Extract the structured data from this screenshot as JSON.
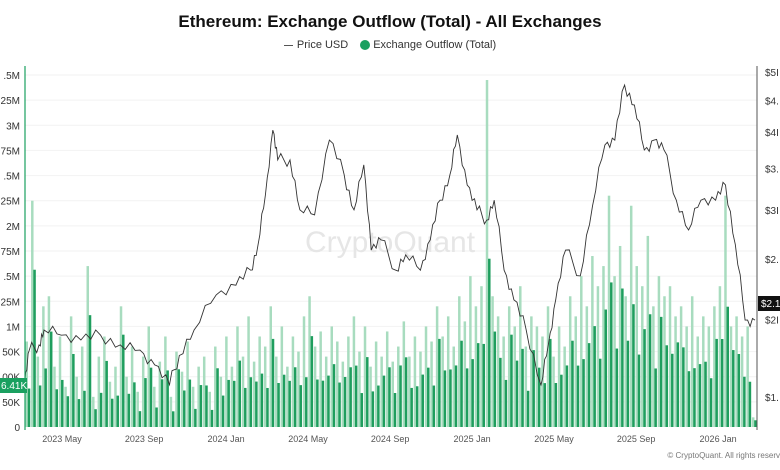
{
  "chart_data": {
    "type": "bar+line",
    "title": "Ethereum: Exchange Outflow (Total) - All Exchanges",
    "legend": [
      {
        "label": "Price USD",
        "color": "#333333",
        "marker": "line"
      },
      {
        "label": "Exchange Outflow (Total)",
        "color": "#1aa060",
        "marker": "dot"
      }
    ],
    "legend_placement": "top-center",
    "watermark": "CryptoQuant",
    "copyright": "© CryptoQuant. All rights reserv",
    "x_ticks": [
      "2023 May",
      "2023 Sep",
      "2024 Jan",
      "2024 May",
      "2024 Sep",
      "2025 Jan",
      "2025 May",
      "2025 Sep",
      "2026 Jan"
    ],
    "x_tick_years": [
      2023.333,
      2023.667,
      2024.0,
      2024.333,
      2024.667,
      2025.0,
      2025.333,
      2025.667,
      2026.0
    ],
    "x_range_years": [
      2023.18,
      2026.16
    ],
    "left_axis": {
      "label_visible": [
        ".5M",
        "25M",
        "3M",
        "75M",
        ".5M",
        "25M",
        "2M",
        "75M",
        ".5M",
        "25M",
        "1M",
        "50K",
        "00K",
        "50K",
        "0"
      ],
      "values": [
        3500000,
        3250000,
        3000000,
        2750000,
        2500000,
        2250000,
        2000000,
        1750000,
        1500000,
        1250000,
        1000000,
        750000,
        500000,
        250000,
        0
      ],
      "range": [
        0,
        3500000
      ],
      "current_label": "6.41K"
    },
    "right_axis": {
      "label_visible": [
        "$5I",
        "$4.",
        "$4I",
        "$3.",
        "$3I",
        "$2.",
        "$2I",
        "$1."
      ],
      "values": [
        5000,
        4500,
        4000,
        3500,
        3000,
        2500,
        2000,
        1500
      ],
      "scale": "log",
      "current_label": "$2.1"
    },
    "grid": true,
    "outflow_thousands": [
      850,
      2250,
      700,
      1200,
      1300,
      600,
      900,
      400,
      1100,
      500,
      800,
      1600,
      300,
      700,
      900,
      450,
      600,
      1200,
      500,
      800,
      350,
      700,
      1000,
      400,
      650,
      900,
      300,
      750,
      550,
      850,
      400,
      600,
      700,
      350,
      800,
      500,
      900,
      600,
      1000,
      700,
      1100,
      650,
      900,
      800,
      1200,
      700,
      1000,
      600,
      900,
      750,
      1100,
      1300,
      800,
      950,
      700,
      1000,
      850,
      650,
      900,
      1100,
      750,
      1000,
      600,
      850,
      700,
      950,
      650,
      800,
      1050,
      700,
      900,
      750,
      1000,
      850,
      1200,
      900,
      1100,
      800,
      1300,
      1050,
      1500,
      1200,
      1400,
      3450,
      1300,
      1100,
      900,
      1200,
      1000,
      1400,
      800,
      1100,
      1000,
      900,
      1200,
      700,
      1000,
      800,
      1300,
      1100,
      1500,
      1200,
      1700,
      1400,
      1600,
      2300,
      1500,
      1800,
      1300,
      2200,
      1600,
      1400,
      1900,
      1200,
      1500,
      1300,
      1400,
      1100,
      1200,
      1000,
      1300,
      900,
      1100,
      1000,
      1200,
      1400,
      2300,
      1000,
      1100,
      900,
      1000,
      96
    ],
    "price_points": [
      [
        2023.18,
        1570
      ],
      [
        2023.2,
        1785
      ],
      [
        2023.24,
        1820
      ],
      [
        2023.26,
        1923
      ],
      [
        2023.33,
        1886
      ],
      [
        2023.41,
        1853
      ],
      [
        2023.49,
        1886
      ],
      [
        2023.57,
        1820
      ],
      [
        2023.65,
        1785
      ],
      [
        2023.71,
        1690
      ],
      [
        2023.77,
        1570
      ],
      [
        2023.81,
        1750
      ],
      [
        2023.87,
        1923
      ],
      [
        2023.96,
        2190
      ],
      [
        2024.04,
        2270
      ],
      [
        2024.1,
        2400
      ],
      [
        2024.13,
        2640
      ],
      [
        2024.16,
        3170
      ],
      [
        2024.19,
        4030
      ],
      [
        2024.21,
        3610
      ],
      [
        2024.26,
        3610
      ],
      [
        2024.3,
        3000
      ],
      [
        2024.36,
        2945
      ],
      [
        2024.42,
        3885
      ],
      [
        2024.48,
        3415
      ],
      [
        2024.52,
        3000
      ],
      [
        2024.56,
        3545
      ],
      [
        2024.59,
        2585
      ],
      [
        2024.63,
        2685
      ],
      [
        2024.69,
        2400
      ],
      [
        2024.73,
        2540
      ],
      [
        2024.79,
        2400
      ],
      [
        2024.83,
        2685
      ],
      [
        2024.87,
        3110
      ],
      [
        2024.91,
        3415
      ],
      [
        2024.94,
        3960
      ],
      [
        2024.98,
        3290
      ],
      [
        2025.02,
        3000
      ],
      [
        2025.06,
        2890
      ],
      [
        2025.09,
        3110
      ],
      [
        2025.13,
        2400
      ],
      [
        2025.17,
        2150
      ],
      [
        2025.22,
        1923
      ],
      [
        2025.28,
        1570
      ],
      [
        2025.31,
        1820
      ],
      [
        2025.34,
        2150
      ],
      [
        2025.38,
        2585
      ],
      [
        2025.44,
        2350
      ],
      [
        2025.49,
        3050
      ],
      [
        2025.54,
        3815
      ],
      [
        2025.58,
        3885
      ],
      [
        2025.62,
        4765
      ],
      [
        2025.66,
        4425
      ],
      [
        2025.7,
        3745
      ],
      [
        2025.74,
        3885
      ],
      [
        2025.78,
        3745
      ],
      [
        2025.83,
        3110
      ],
      [
        2025.88,
        2785
      ],
      [
        2025.93,
        3110
      ],
      [
        2025.99,
        3110
      ],
      [
        2026.03,
        3290
      ],
      [
        2026.07,
        2640
      ],
      [
        2026.11,
        1995
      ],
      [
        2026.15,
        1995
      ]
    ]
  }
}
